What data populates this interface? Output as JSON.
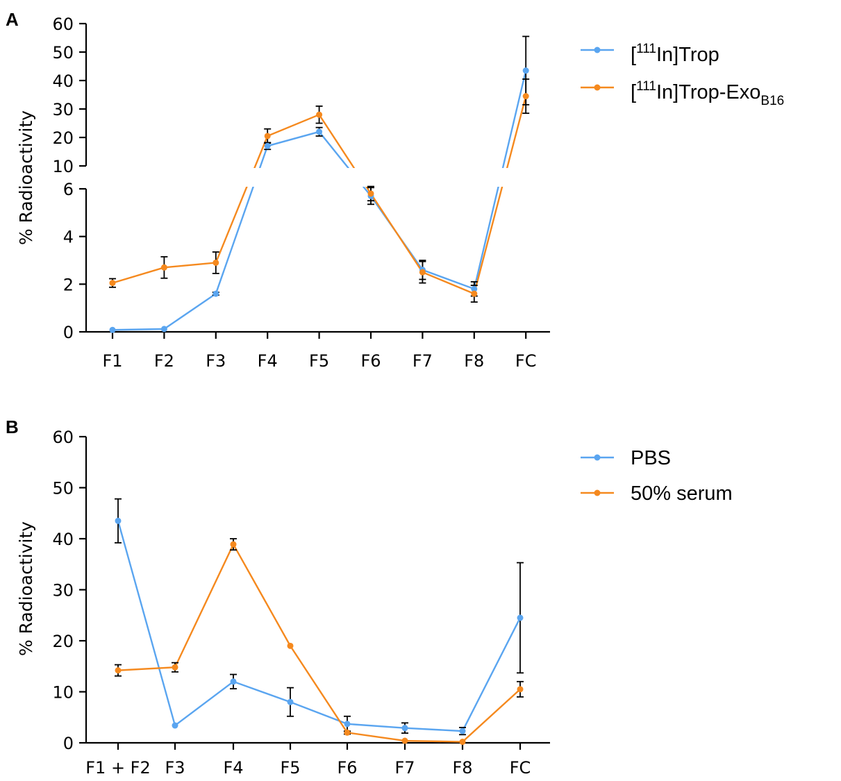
{
  "chart_data": [
    {
      "panel": "A",
      "type": "line",
      "categories": [
        "F1",
        "F2",
        "F3",
        "F4",
        "F5",
        "F6",
        "F7",
        "F8",
        "FC"
      ],
      "ylabel": "% Radioactivity",
      "y_axis_break": true,
      "ylim_lower": [
        0,
        6
      ],
      "ylim_upper": [
        10,
        60
      ],
      "yticks_lower": [
        "0",
        "2",
        "4",
        "6"
      ],
      "yticks_upper": [
        "10",
        "20",
        "30",
        "40",
        "50",
        "60"
      ],
      "legend_position": "top-right",
      "series": [
        {
          "name": "[111In]Trop",
          "name_parts": {
            "pre": "[",
            "sup": "111",
            "post": "In]Trop",
            "sub": ""
          },
          "color": "#5aa5f0",
          "values": [
            0.08,
            0.12,
            1.6,
            17,
            22,
            5.7,
            2.6,
            1.8,
            43.5
          ],
          "errors": [
            0.02,
            0.02,
            0.06,
            1.2,
            1.5,
            0.35,
            0.4,
            0.3,
            12
          ]
        },
        {
          "name": "[111In]Trop-ExoB16",
          "name_parts": {
            "pre": "[",
            "sup": "111",
            "post": "In]Trop-Exo",
            "sub": "B16"
          },
          "color": "#f5891e",
          "values": [
            2.05,
            2.7,
            2.9,
            20.5,
            28,
            5.8,
            2.5,
            1.6,
            34.5
          ],
          "errors": [
            0.18,
            0.45,
            0.45,
            2.5,
            3,
            0.3,
            0.45,
            0.35,
            6
          ]
        }
      ]
    },
    {
      "panel": "B",
      "type": "line",
      "categories": [
        "F1 + F2",
        "F3",
        "F4",
        "F5",
        "F6",
        "F7",
        "F8",
        "FC"
      ],
      "ylabel": "% Radioactivity",
      "ylim": [
        0,
        60
      ],
      "yticks": [
        "0",
        "10",
        "20",
        "30",
        "40",
        "50",
        "60"
      ],
      "legend_position": "top-right",
      "series": [
        {
          "name": "PBS",
          "color": "#5aa5f0",
          "values": [
            43.5,
            3.4,
            12,
            8,
            3.7,
            2.9,
            2.3,
            24.5
          ],
          "errors": [
            4.3,
            0.2,
            1.4,
            2.8,
            1.5,
            1.0,
            0.7,
            10.8
          ]
        },
        {
          "name": "50% serum",
          "color": "#f5891e",
          "values": [
            14.2,
            14.8,
            38.9,
            19,
            2,
            0.4,
            0.2,
            10.5
          ],
          "errors": [
            1.1,
            0.9,
            1.1,
            0.2,
            0.3,
            0.2,
            0.1,
            1.5
          ]
        }
      ]
    }
  ],
  "panels": [
    {
      "label": "A"
    },
    {
      "label": "B"
    }
  ]
}
